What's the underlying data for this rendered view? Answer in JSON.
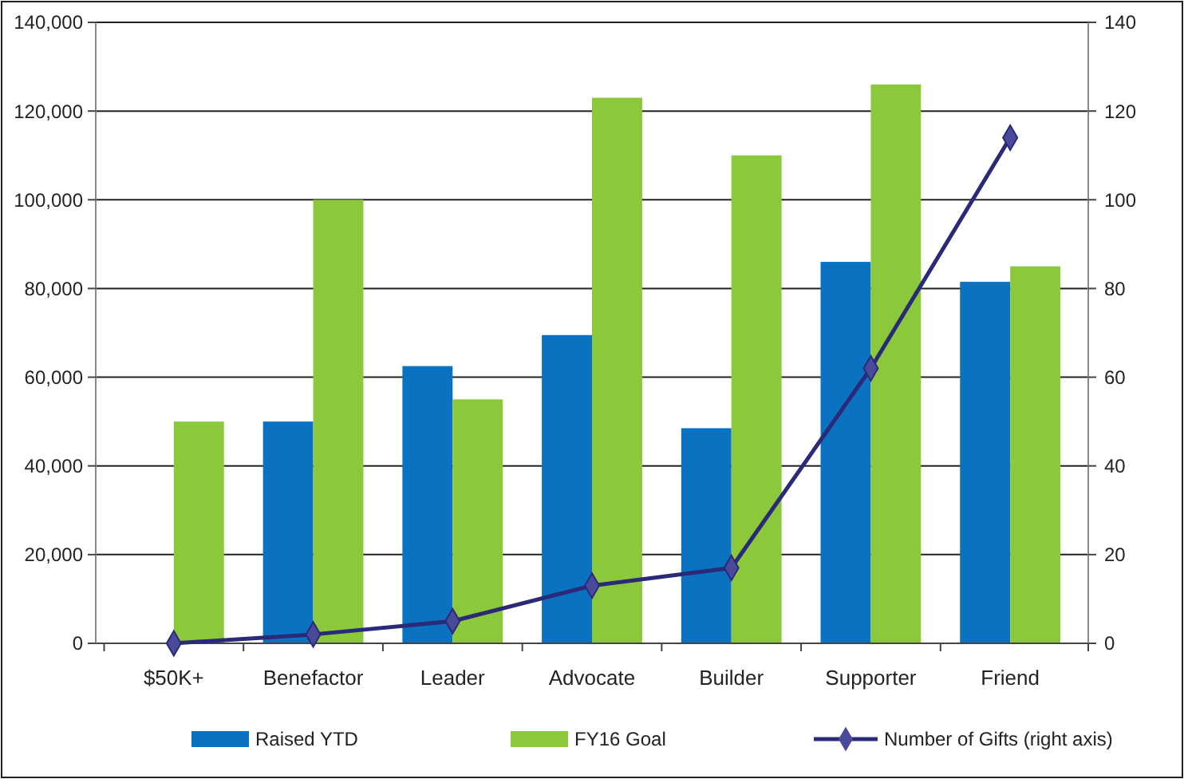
{
  "chart_data": {
    "type": "bar",
    "categories": [
      "$50K+",
      "Benefactor",
      "Leader",
      "Advocate",
      "Builder",
      "Supporter",
      "Friend"
    ],
    "series": [
      {
        "name": "Raised YTD",
        "color": "#0a72c0",
        "values": [
          0,
          50000,
          62500,
          69500,
          48500,
          86000,
          81500
        ]
      },
      {
        "name": "FY16 Goal",
        "color": "#8cc83c",
        "values": [
          50000,
          100000,
          55000,
          123000,
          110000,
          126000,
          85000
        ]
      },
      {
        "name": "Number of Gifts (right axis)",
        "type": "line",
        "axis": "y2",
        "color": "#2a2a78",
        "marker": "diamond",
        "values": [
          0,
          2,
          5,
          13,
          17,
          62,
          114
        ]
      }
    ],
    "ylim": [
      0,
      140000
    ],
    "yticks": [
      {
        "value": 0,
        "label": "0"
      },
      {
        "value": 20000,
        "label": "20,000"
      },
      {
        "value": 40000,
        "label": "40,000"
      },
      {
        "value": 60000,
        "label": "60,000"
      },
      {
        "value": 80000,
        "label": "80,000"
      },
      {
        "value": 100000,
        "label": "100,000"
      },
      {
        "value": 120000,
        "label": "120,000"
      },
      {
        "value": 140000,
        "label": "140,000"
      }
    ],
    "y2lim": [
      0,
      140
    ],
    "y2ticks": [
      0,
      20,
      40,
      60,
      80,
      100,
      120,
      140
    ],
    "grid": "y",
    "legend": "bottom"
  }
}
